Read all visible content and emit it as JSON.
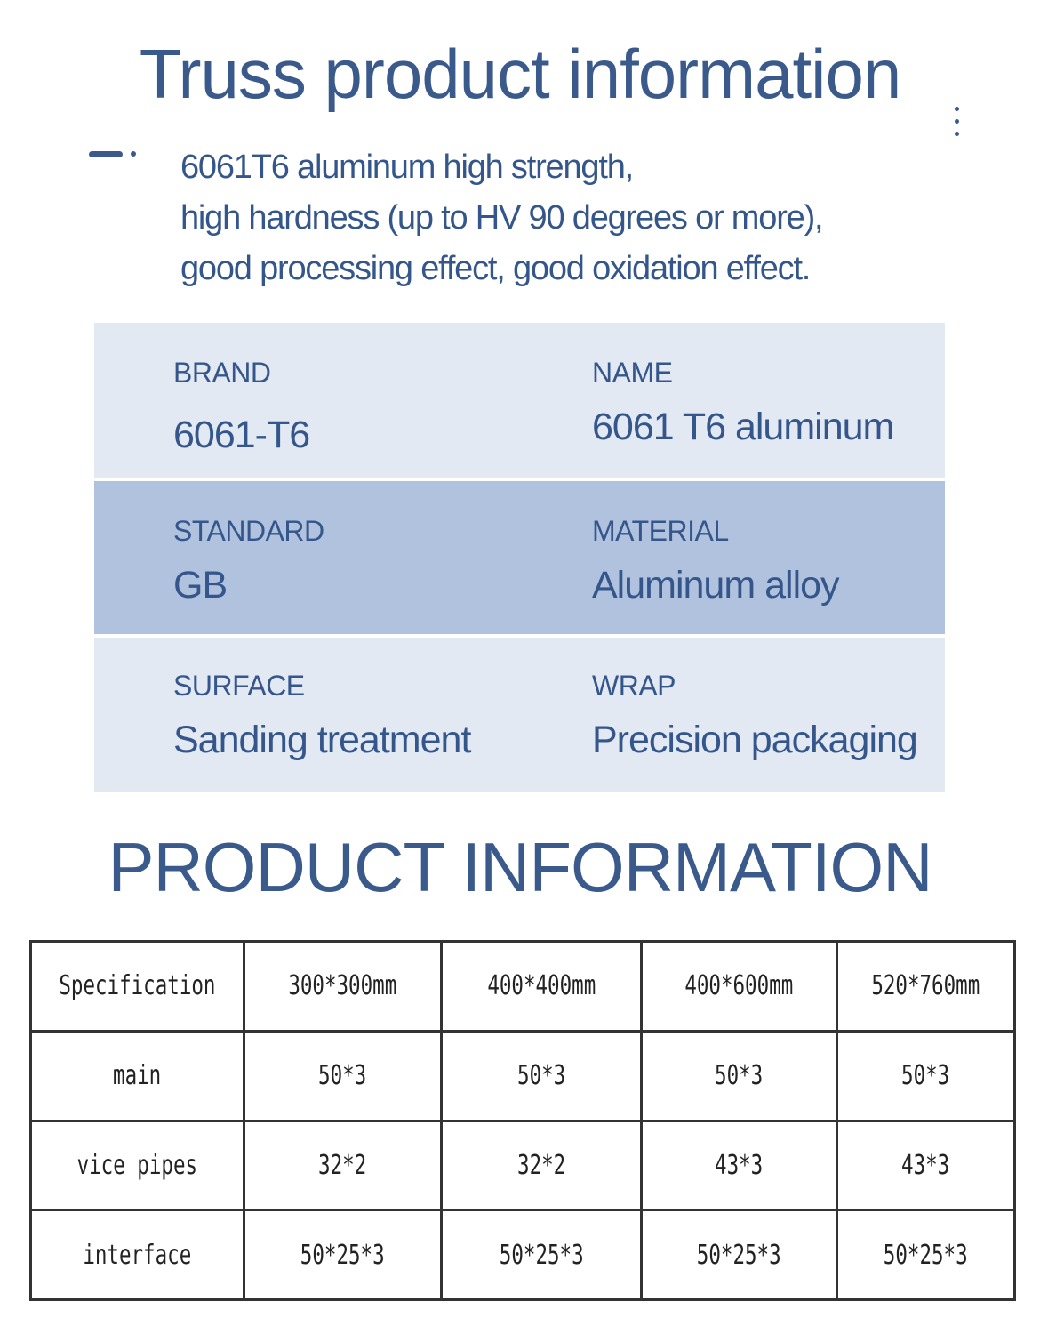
{
  "title": "Truss product information",
  "description": [
    "6061T6 aluminum high strength,",
    "high hardness (up to HV 90 degrees or more),",
    "good processing effect, good oxidation effect."
  ],
  "attributes": [
    {
      "label": "BRAND",
      "value": "6061-T6"
    },
    {
      "label": "NAME",
      "value": "6061 T6 aluminum"
    },
    {
      "label": "STANDARD",
      "value": "GB"
    },
    {
      "label": "MATERIAL",
      "value": "Aluminum alloy"
    },
    {
      "label": "SURFACE",
      "value": "Sanding treatment"
    },
    {
      "label": "WRAP",
      "value": "Precision packaging"
    }
  ],
  "section_heading": "PRODUCT INFORMATION",
  "table": {
    "header": [
      "Specification",
      "300*300mm",
      "400*400mm",
      "400*600mm",
      "520*760mm"
    ],
    "rows": [
      [
        "main",
        "50*3",
        "50*3",
        "50*3",
        "50*3"
      ],
      [
        "vice pipes",
        "32*2",
        "32*2",
        "43*3",
        "43*3"
      ],
      [
        "interface",
        "50*25*3",
        "50*25*3",
        "50*25*3",
        "50*25*3"
      ]
    ]
  },
  "colors": {
    "accent": "#3b5a8c",
    "panel_light": "#e3e9f3",
    "panel_dark": "#b1c2de"
  }
}
